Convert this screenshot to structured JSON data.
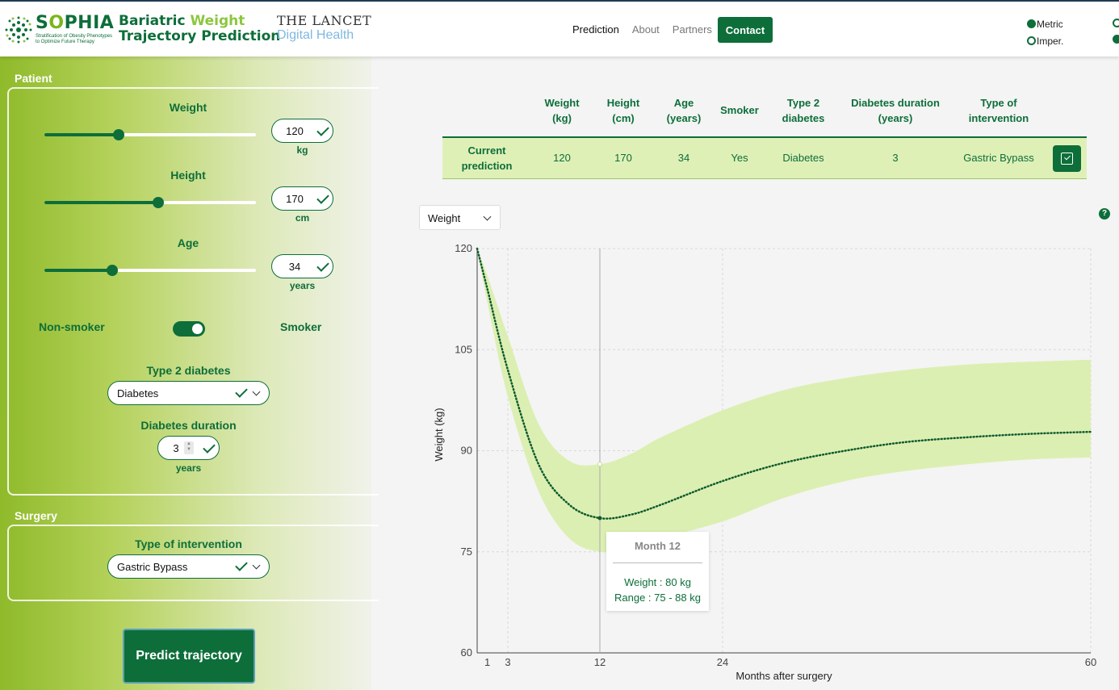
{
  "header": {
    "brand_name_1": "S",
    "brand_name_2": "O",
    "brand_name_3": "PHIA",
    "brand_sub": "Stratification of Obesity Phenotypes to Optimize Future Therapy",
    "title_line1_a": "Bariatric ",
    "title_line1_b": "Weight",
    "title_line2": "Trajectory Prediction",
    "lancet_1": "THE LANCET",
    "lancet_2": "Digital Health",
    "nav": [
      "Prediction",
      "About",
      "Partners"
    ],
    "contact": "Contact",
    "units": [
      "Metric",
      "Imper."
    ]
  },
  "patient": {
    "section": "Patient",
    "weight": {
      "label": "Weight",
      "value": "120",
      "unit": "kg",
      "level": 0.35
    },
    "height": {
      "label": "Height",
      "value": "170",
      "unit": "cm",
      "level": 0.54
    },
    "age": {
      "label": "Age",
      "value": "34",
      "unit": "years",
      "level": 0.32
    },
    "non_smoker": "Non-smoker",
    "smoker": "Smoker",
    "diabetes_label": "Type 2 diabetes",
    "diabetes_value": "Diabetes",
    "duration_label": "Diabetes duration",
    "duration_value": "3",
    "duration_unit": "years"
  },
  "surgery": {
    "section": "Surgery",
    "intervention_label": "Type of intervention",
    "intervention_value": "Gastric Bypass"
  },
  "predict": "Predict trajectory",
  "table": {
    "headers": [
      [
        "Weight",
        "(kg)"
      ],
      [
        "Height",
        "(cm)"
      ],
      [
        "Age",
        "(years)"
      ],
      [
        "Smoker",
        ""
      ],
      [
        "Type 2",
        "diabetes"
      ],
      [
        "Diabetes duration",
        "(years)"
      ],
      [
        "Type of",
        "intervention"
      ]
    ],
    "row_label": [
      "Current",
      "prediction"
    ],
    "row": [
      "120",
      "170",
      "34",
      "Yes",
      "Diabetes",
      "3",
      "Gastric Bypass"
    ]
  },
  "metric_select": "Weight",
  "help": "?",
  "chart_data": {
    "type": "line",
    "xlabel": "Months after surgery",
    "ylabel": "Weight (kg)",
    "xlim": [
      0,
      60
    ],
    "ylim": [
      60,
      120
    ],
    "xticks": [
      1,
      3,
      12,
      24,
      60
    ],
    "yticks": [
      60,
      75,
      90,
      105,
      120
    ],
    "grid": true,
    "series": [
      {
        "x": [
          0,
          1,
          3,
          6,
          9,
          12,
          15,
          18,
          24,
          30,
          36,
          42,
          48,
          54,
          60
        ],
        "values": [
          120,
          114,
          102,
          88,
          82,
          80,
          80.5,
          82,
          85.5,
          88.2,
          90,
          91.3,
          92,
          92.5,
          92.8
        ]
      }
    ],
    "band": {
      "x": [
        0,
        1,
        3,
        6,
        9,
        12,
        15,
        18,
        24,
        30,
        36,
        42,
        48,
        54,
        60
      ],
      "upper": [
        120,
        116,
        107,
        94,
        88.5,
        88,
        89.5,
        92,
        96,
        99,
        100.8,
        102,
        102.8,
        103.2,
        103.5
      ],
      "lower": [
        120,
        112,
        98,
        84,
        77,
        75,
        75.5,
        77,
        79.5,
        83,
        85.5,
        87,
        88,
        88.7,
        89
      ]
    },
    "hover": {
      "x": 12
    },
    "tooltip": {
      "title": "Month 12",
      "weight": "Weight : 80 kg",
      "range": "Range : 75 - 88 kg"
    }
  }
}
